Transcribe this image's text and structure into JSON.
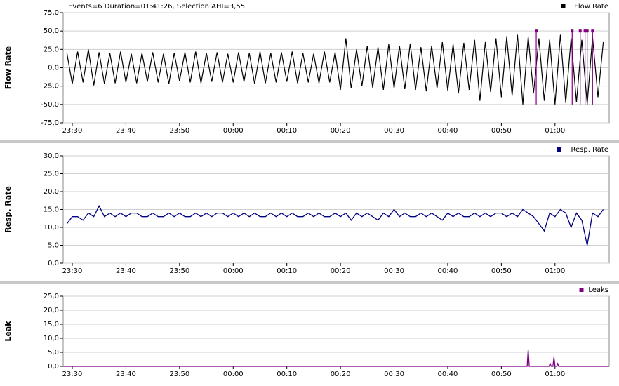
{
  "chart_data": [
    {
      "type": "line",
      "title": "Events=6 Duration=01:41:26, Selection AHI=3,55",
      "y_label": "Flow Rate",
      "xlim": [
        -31.7,
        70.1
      ],
      "xticks": [
        {
          "value": -30,
          "label": "23:30"
        },
        {
          "value": -20,
          "label": "23:40"
        },
        {
          "value": -10,
          "label": "23:50"
        },
        {
          "value": 0,
          "label": "00:00"
        },
        {
          "value": 10,
          "label": "00:10"
        },
        {
          "value": 20,
          "label": "00:20"
        },
        {
          "value": 30,
          "label": "00:30"
        },
        {
          "value": 40,
          "label": "00:40"
        },
        {
          "value": 50,
          "label": "00:50"
        },
        {
          "value": 60,
          "label": "01:00"
        }
      ],
      "ylim": [
        -75,
        75
      ],
      "yticks": [
        {
          "value": -75,
          "label": "-75,0"
        },
        {
          "value": -50,
          "label": "-50,0"
        },
        {
          "value": -25,
          "label": "-25,0"
        },
        {
          "value": 0,
          "label": "0,0"
        },
        {
          "value": 25,
          "label": "25,0"
        },
        {
          "value": 50,
          "label": "50,0"
        },
        {
          "value": 75,
          "label": "75,0"
        }
      ],
      "grid": true,
      "series": [
        {
          "name": "Flow Rate",
          "color": "#000000",
          "x": [
            -31,
            -30,
            -29,
            -28,
            -27,
            -26,
            -25,
            -24,
            -23,
            -22,
            -21,
            -20,
            -19,
            -18,
            -17,
            -16,
            -15,
            -14,
            -13,
            -12,
            -11,
            -10,
            -9,
            -8,
            -7,
            -6,
            -5,
            -4,
            -3,
            -2,
            -1,
            0,
            1,
            2,
            3,
            4,
            5,
            6,
            7,
            8,
            9,
            10,
            11,
            12,
            13,
            14,
            15,
            16,
            17,
            18,
            19,
            20,
            21,
            22,
            23,
            24,
            25,
            26,
            27,
            28,
            29,
            30,
            31,
            32,
            33,
            34,
            35,
            36,
            37,
            38,
            39,
            40,
            41,
            42,
            43,
            44,
            45,
            46,
            47,
            48,
            49,
            50,
            51,
            52,
            53,
            54,
            55,
            56,
            57,
            58,
            59,
            60,
            61,
            62,
            63,
            64,
            65,
            66,
            67,
            68,
            69
          ],
          "values": [
            20,
            -22,
            22,
            -20,
            25,
            -24,
            21,
            -22,
            20,
            -21,
            22,
            -20,
            19,
            -21,
            20,
            -19,
            21,
            -20,
            19,
            -22,
            20,
            -18,
            21,
            -20,
            22,
            -21,
            20,
            -19,
            21,
            -20,
            19,
            -20,
            21,
            -19,
            20,
            -22,
            22,
            -21,
            20,
            -20,
            21,
            -19,
            22,
            -21,
            20,
            -20,
            19,
            -21,
            22,
            -20,
            21,
            -30,
            40,
            -28,
            25,
            -25,
            30,
            -27,
            28,
            -30,
            32,
            -28,
            30,
            -29,
            33,
            -30,
            28,
            -32,
            30,
            -28,
            35,
            -31,
            32,
            -35,
            34,
            -30,
            38,
            -45,
            35,
            -33,
            40,
            -40,
            42,
            -38,
            45,
            -50,
            42,
            -35,
            40,
            -45,
            38,
            -50,
            45,
            -48,
            40,
            -47,
            38,
            -50,
            42,
            -40,
            35
          ]
        }
      ],
      "events": {
        "color": "#800080",
        "x": [
          56.5,
          63.2,
          64.7,
          65.6,
          66.0,
          67.0
        ]
      }
    },
    {
      "type": "line",
      "y_label": "Resp. Rate",
      "xlim": [
        -31.7,
        70.1
      ],
      "xticks": [
        {
          "value": -30,
          "label": "23:30"
        },
        {
          "value": -20,
          "label": "23:40"
        },
        {
          "value": -10,
          "label": "23:50"
        },
        {
          "value": 0,
          "label": "00:00"
        },
        {
          "value": 10,
          "label": "00:10"
        },
        {
          "value": 20,
          "label": "00:20"
        },
        {
          "value": 30,
          "label": "00:30"
        },
        {
          "value": 40,
          "label": "00:40"
        },
        {
          "value": 50,
          "label": "00:50"
        },
        {
          "value": 60,
          "label": "01:00"
        }
      ],
      "ylim": [
        0,
        30
      ],
      "yticks": [
        {
          "value": 0,
          "label": "0,0"
        },
        {
          "value": 5,
          "label": "5,0"
        },
        {
          "value": 10,
          "label": "10,0"
        },
        {
          "value": 15,
          "label": "15,0"
        },
        {
          "value": 20,
          "label": "20,0"
        },
        {
          "value": 25,
          "label": "25,0"
        },
        {
          "value": 30,
          "label": "30,0"
        }
      ],
      "grid": true,
      "series": [
        {
          "name": "Resp. Rate",
          "color": "#000080",
          "x": [
            -31,
            -30,
            -29,
            -28,
            -27,
            -26,
            -25,
            -24,
            -23,
            -22,
            -21,
            -20,
            -19,
            -18,
            -17,
            -16,
            -15,
            -14,
            -13,
            -12,
            -11,
            -10,
            -9,
            -8,
            -7,
            -6,
            -5,
            -4,
            -3,
            -2,
            -1,
            0,
            1,
            2,
            3,
            4,
            5,
            6,
            7,
            8,
            9,
            10,
            11,
            12,
            13,
            14,
            15,
            16,
            17,
            18,
            19,
            20,
            21,
            22,
            23,
            24,
            25,
            26,
            27,
            28,
            29,
            30,
            31,
            32,
            33,
            34,
            35,
            36,
            37,
            38,
            39,
            40,
            41,
            42,
            43,
            44,
            45,
            46,
            47,
            48,
            49,
            50,
            51,
            52,
            53,
            54,
            55,
            56,
            57,
            58,
            59,
            60,
            61,
            62,
            63,
            64,
            65,
            66,
            67,
            68,
            69
          ],
          "values": [
            11,
            13,
            13,
            12,
            14,
            13,
            16,
            13,
            14,
            13,
            14,
            13,
            14,
            14,
            13,
            13,
            14,
            13,
            13,
            14,
            13,
            14,
            13,
            13,
            14,
            13,
            14,
            13,
            14,
            14,
            13,
            14,
            13,
            14,
            13,
            14,
            13,
            13,
            14,
            13,
            14,
            13,
            14,
            13,
            13,
            14,
            13,
            14,
            13,
            13,
            14,
            13,
            14,
            12,
            14,
            13,
            14,
            13,
            12,
            14,
            13,
            15,
            13,
            14,
            13,
            13,
            14,
            13,
            14,
            13,
            12,
            14,
            13,
            14,
            13,
            13,
            14,
            13,
            14,
            13,
            14,
            14,
            13,
            14,
            13,
            15,
            14,
            13,
            11,
            9,
            14,
            13,
            15,
            14,
            10,
            14,
            12,
            5,
            14,
            13,
            15
          ]
        }
      ]
    },
    {
      "type": "line",
      "y_label": "Leak",
      "xlim": [
        -31.7,
        70.1
      ],
      "xticks": [
        {
          "value": -30,
          "label": "23:30"
        },
        {
          "value": -20,
          "label": "23:40"
        },
        {
          "value": -10,
          "label": "23:50"
        },
        {
          "value": 0,
          "label": "00:00"
        },
        {
          "value": 10,
          "label": "00:10"
        },
        {
          "value": 20,
          "label": "00:20"
        },
        {
          "value": 30,
          "label": "00:30"
        },
        {
          "value": 40,
          "label": "00:40"
        },
        {
          "value": 50,
          "label": "00:50"
        },
        {
          "value": 60,
          "label": "01:00"
        }
      ],
      "ylim": [
        0,
        25
      ],
      "yticks": [
        {
          "value": 0,
          "label": "0,0"
        },
        {
          "value": 5,
          "label": "5,0"
        },
        {
          "value": 10,
          "label": "10,0"
        },
        {
          "value": 15,
          "label": "15,0"
        },
        {
          "value": 20,
          "label": "20,0"
        },
        {
          "value": 25,
          "label": "25,0"
        }
      ],
      "grid": true,
      "series": [
        {
          "name": "Leaks",
          "color": "#800080",
          "x": [
            -31.7,
            54.8,
            55,
            55.2,
            58.9,
            59.1,
            59.3,
            59.6,
            59.8,
            60,
            60.3,
            60.5,
            60.7,
            70.1
          ],
          "values": [
            0,
            0,
            6,
            0,
            0,
            1,
            0,
            0,
            3.3,
            0,
            0,
            1,
            0,
            0
          ]
        }
      ]
    }
  ]
}
